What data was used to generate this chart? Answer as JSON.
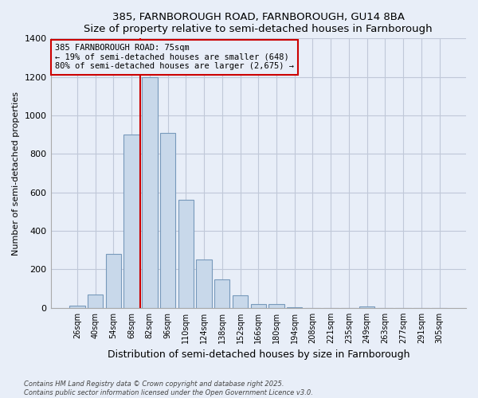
{
  "title1": "385, FARNBOROUGH ROAD, FARNBOROUGH, GU14 8BA",
  "title2": "Size of property relative to semi-detached houses in Farnborough",
  "xlabel": "Distribution of semi-detached houses by size in Farnborough",
  "ylabel": "Number of semi-detached properties",
  "categories": [
    "26sqm",
    "40sqm",
    "54sqm",
    "68sqm",
    "82sqm",
    "96sqm",
    "110sqm",
    "124sqm",
    "138sqm",
    "152sqm",
    "166sqm",
    "180sqm",
    "194sqm",
    "208sqm",
    "221sqm",
    "235sqm",
    "249sqm",
    "263sqm",
    "277sqm",
    "291sqm",
    "305sqm"
  ],
  "values": [
    12,
    70,
    280,
    900,
    1200,
    910,
    560,
    250,
    150,
    65,
    20,
    20,
    5,
    0,
    0,
    0,
    8,
    0,
    0,
    0,
    0
  ],
  "bar_color": "#c8d8ea",
  "bar_edge_color": "#7799bb",
  "ylim": [
    0,
    1400
  ],
  "yticks": [
    0,
    200,
    400,
    600,
    800,
    1000,
    1200,
    1400
  ],
  "annotation_text_line1": "385 FARNBOROUGH ROAD: 75sqm",
  "annotation_text_line2": "← 19% of semi-detached houses are smaller (648)",
  "annotation_text_line3": "80% of semi-detached houses are larger (2,675) →",
  "footer1": "Contains HM Land Registry data © Crown copyright and database right 2025.",
  "footer2": "Contains public sector information licensed under the Open Government Licence v3.0.",
  "background_color": "#e8eef8",
  "redline_index": 3.5
}
